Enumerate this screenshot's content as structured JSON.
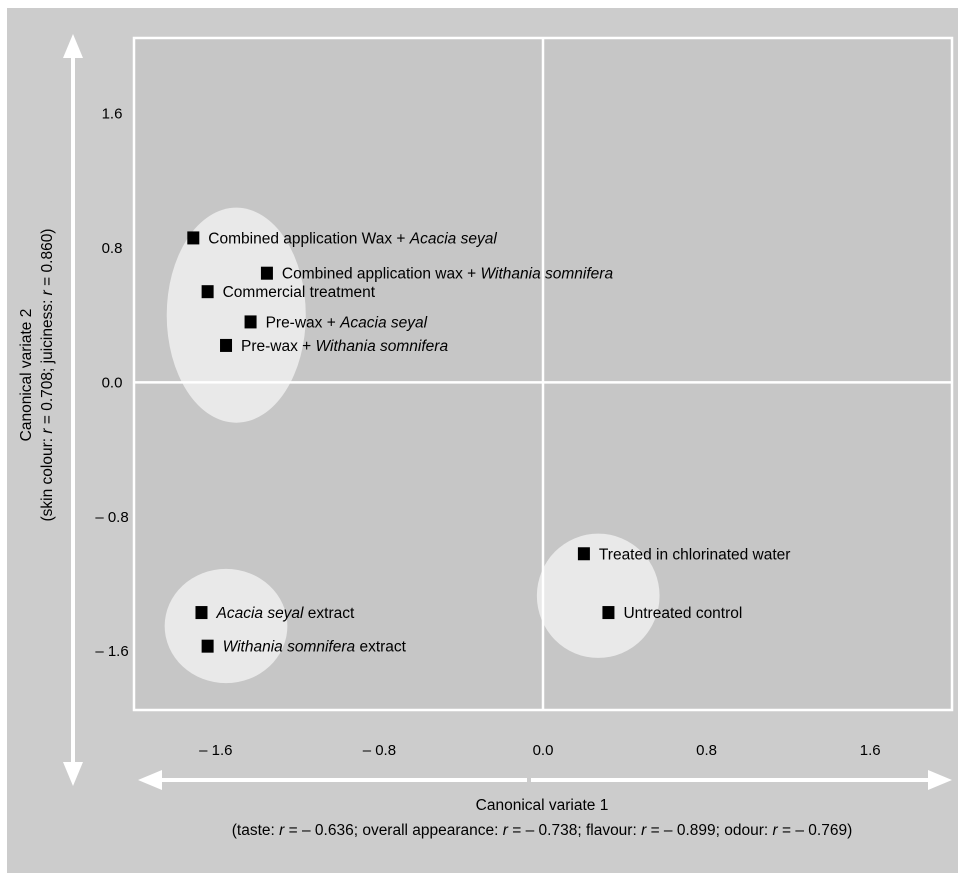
{
  "chart_data": {
    "type": "scatter",
    "title": "",
    "xlabel": "Canonical variate 1",
    "xlabel_detail": [
      {
        "text": "(taste: ",
        "italic": false
      },
      {
        "text": "r",
        "italic": true
      },
      {
        "text": " = – 0.636; overall appearance: ",
        "italic": false
      },
      {
        "text": "r",
        "italic": true
      },
      {
        "text": " = – 0.738; flavour: ",
        "italic": false
      },
      {
        "text": "r",
        "italic": true
      },
      {
        "text": " = – 0.899; odour: ",
        "italic": false
      },
      {
        "text": "r",
        "italic": true
      },
      {
        "text": " = – 0.769)",
        "italic": false
      }
    ],
    "ylabel": "Canonical variate 2",
    "ylabel_detail": [
      {
        "text": "(skin colour: ",
        "italic": false
      },
      {
        "text": "r",
        "italic": true
      },
      {
        "text": " = 0.708; juiciness: ",
        "italic": false
      },
      {
        "text": "r",
        "italic": true
      },
      {
        "text": " = 0.860)",
        "italic": false
      }
    ],
    "xlim": [
      -2.0,
      2.0
    ],
    "ylim": [
      -1.95,
      2.05
    ],
    "xticks": [
      -1.6,
      -0.8,
      0.0,
      0.8,
      1.6
    ],
    "xtick_labels": [
      "– 1.6",
      "– 0.8",
      "0.0",
      "0.8",
      "1.6"
    ],
    "yticks": [
      1.6,
      0.8,
      0.0,
      -0.8,
      -1.6
    ],
    "ytick_labels": [
      "1.6",
      "0.8",
      "0.0",
      "– 0.8",
      "– 1.6"
    ],
    "grid": false,
    "legend": "none",
    "zero_lines": true,
    "colors": {
      "outer_background": "#cccccc",
      "plot_background": "#c6c6c6",
      "axis_lines": "#ffffff",
      "cluster_fill": "#e9e9e9",
      "marker": "#000000"
    },
    "clusters": [
      {
        "name": "cluster-coatings",
        "cx": -1.5,
        "cy": 0.4,
        "rx": 0.34,
        "ry": 0.64
      },
      {
        "name": "cluster-extracts",
        "cx": -1.55,
        "cy": -1.45,
        "rx": 0.3,
        "ry": 0.34
      },
      {
        "name": "cluster-controls",
        "cx": 0.27,
        "cy": -1.27,
        "rx": 0.3,
        "ry": 0.37
      }
    ],
    "points": [
      {
        "x": -1.71,
        "y": 0.86,
        "label": [
          {
            "text": "Combined application Wax + ",
            "italic": false
          },
          {
            "text": "Acacia seyal",
            "italic": true
          }
        ]
      },
      {
        "x": -1.35,
        "y": 0.65,
        "label": [
          {
            "text": "Combined application wax + ",
            "italic": false
          },
          {
            "text": "Withania somnifera",
            "italic": true
          }
        ]
      },
      {
        "x": -1.64,
        "y": 0.54,
        "label": [
          {
            "text": "Commercial treatment",
            "italic": false
          }
        ]
      },
      {
        "x": -1.43,
        "y": 0.36,
        "label": [
          {
            "text": "Pre-wax + ",
            "italic": false
          },
          {
            "text": "Acacia seyal",
            "italic": true
          }
        ]
      },
      {
        "x": -1.55,
        "y": 0.22,
        "label": [
          {
            "text": "Pre-wax + ",
            "italic": false
          },
          {
            "text": "Withania somnifera",
            "italic": true
          }
        ]
      },
      {
        "x": 0.2,
        "y": -1.02,
        "label": [
          {
            "text": "Treated in chlorinated water",
            "italic": false
          }
        ]
      },
      {
        "x": 0.32,
        "y": -1.37,
        "label": [
          {
            "text": "Untreated control",
            "italic": false
          }
        ]
      },
      {
        "x": -1.67,
        "y": -1.37,
        "label": [
          {
            "text": "Acacia seyal",
            "italic": true
          },
          {
            "text": " extract",
            "italic": false
          }
        ]
      },
      {
        "x": -1.64,
        "y": -1.57,
        "label": [
          {
            "text": "Withania somnifera",
            "italic": true
          },
          {
            "text": " extract",
            "italic": false
          }
        ]
      }
    ]
  }
}
